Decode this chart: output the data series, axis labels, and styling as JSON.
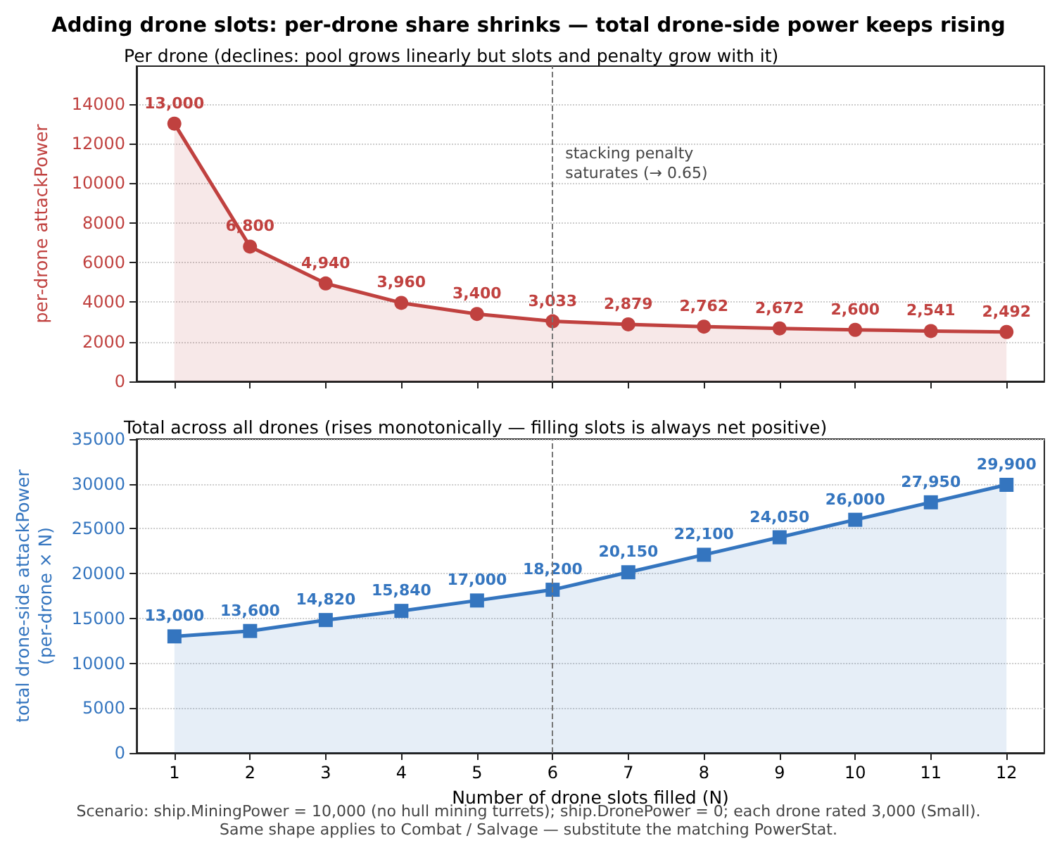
{
  "chart_data": [
    {
      "type": "area",
      "title": "Adding drone slots: per-drone share shrinks — total drone-side power keeps rising",
      "subtitle": "Per drone (declines: pool grows linearly but slots and penalty grow with it)",
      "ylabel": "per-drone attackPower",
      "x": [
        1,
        2,
        3,
        4,
        5,
        6,
        7,
        8,
        9,
        10,
        11,
        12
      ],
      "series": [
        {
          "color": "#c0413f",
          "values": [
            13000,
            6800,
            4940,
            3960,
            3400,
            3033,
            2879,
            2762,
            2672,
            2600,
            2541,
            2492
          ],
          "value_labels": [
            "13,000",
            "6,800",
            "4,940",
            "3,960",
            "3,400",
            "3,033",
            "2,879",
            "2,762",
            "2,672",
            "2,600",
            "2,541",
            "2,492"
          ]
        }
      ],
      "xlim": [
        0.5,
        12.5
      ],
      "xticks": [
        1,
        2,
        3,
        4,
        5,
        6,
        7,
        8,
        9,
        10,
        11,
        12
      ],
      "ylim": [
        0,
        15900
      ],
      "yticks": [
        0,
        2000,
        4000,
        6000,
        8000,
        10000,
        12000,
        14000
      ],
      "ref_lines": [
        {
          "axis": "x",
          "value": 6,
          "label": "stacking penalty\nsaturates (→ 0.65)",
          "color": "#777777",
          "line_style": "dashed"
        }
      ],
      "grid": "y",
      "marker": "circle",
      "line_style": "solid",
      "tick_labels": "y"
    },
    {
      "type": "area",
      "title": "Total across all drones (rises monotonically — filling slots is always net positive)",
      "xlabel": "Number of drone slots filled (N)",
      "ylabel": "total drone-side attackPower\n(per-drone × N)",
      "x": [
        1,
        2,
        3,
        4,
        5,
        6,
        7,
        8,
        9,
        10,
        11,
        12
      ],
      "series": [
        {
          "color": "#3475bf",
          "values": [
            13000,
            13600,
            14820,
            15840,
            17000,
            18200,
            20150,
            22100,
            24050,
            26000,
            27950,
            29900
          ],
          "value_labels": [
            "13,000",
            "13,600",
            "14,820",
            "15,840",
            "17,000",
            "18,200",
            "20,150",
            "22,100",
            "24,050",
            "26,000",
            "27,950",
            "29,900"
          ]
        }
      ],
      "xlim": [
        0.5,
        12.5
      ],
      "xticks": [
        1,
        2,
        3,
        4,
        5,
        6,
        7,
        8,
        9,
        10,
        11,
        12
      ],
      "ylim": [
        0,
        35000
      ],
      "yticks": [
        0,
        5000,
        10000,
        15000,
        20000,
        25000,
        30000,
        35000
      ],
      "ref_lines": [
        {
          "axis": "x",
          "value": 6,
          "color": "#777777",
          "line_style": "dashed"
        }
      ],
      "annotations": [
        "Scenario: ship.MiningPower = 10,000 (no hull mining turrets); ship.DronePower = 0; each drone rated 3,000 (Small).",
        "Same shape applies to Combat / Salvage — substitute the matching PowerStat."
      ],
      "grid": "y",
      "marker": "square",
      "line_style": "solid"
    }
  ]
}
